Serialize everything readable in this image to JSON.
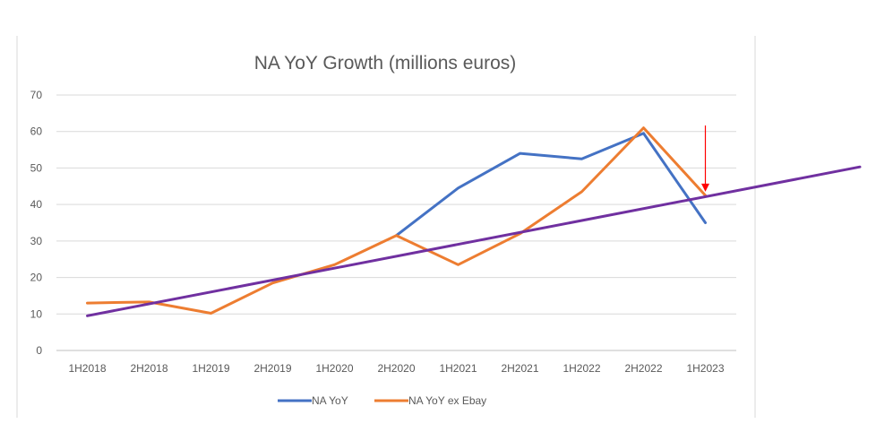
{
  "chart_data": {
    "type": "line",
    "title": "NA YoY Growth (millions euros)",
    "xlabel": "",
    "ylabel": "",
    "categories": [
      "1H2018",
      "2H2018",
      "1H2019",
      "2H2019",
      "1H2020",
      "2H2020",
      "1H2021",
      "2H2021",
      "1H2022",
      "2H2022",
      "1H2023"
    ],
    "ylim": [
      0,
      70
    ],
    "yticks": [
      0,
      10,
      20,
      30,
      40,
      50,
      60,
      70
    ],
    "grid": true,
    "legend_position": "bottom",
    "series": [
      {
        "name": "NA YoY",
        "color": "#4472C4",
        "values": [
          null,
          null,
          null,
          null,
          null,
          31.5,
          44.5,
          54,
          52.5,
          59.5,
          35
        ]
      },
      {
        "name": "NA YoY ex Ebay",
        "color": "#ED7D31",
        "values": [
          13,
          13.3,
          10.2,
          18.5,
          23.5,
          31.5,
          23.5,
          32,
          43.5,
          61,
          42.5
        ]
      }
    ],
    "trendline": {
      "color": "#7030A0",
      "x_start": 0,
      "y_start": 9.5,
      "x_end": 12.5,
      "y_end": 50.3
    },
    "annotation": {
      "type": "arrow",
      "color": "#FF0000",
      "target_category": "1H2023",
      "target_value": 43.5
    }
  }
}
